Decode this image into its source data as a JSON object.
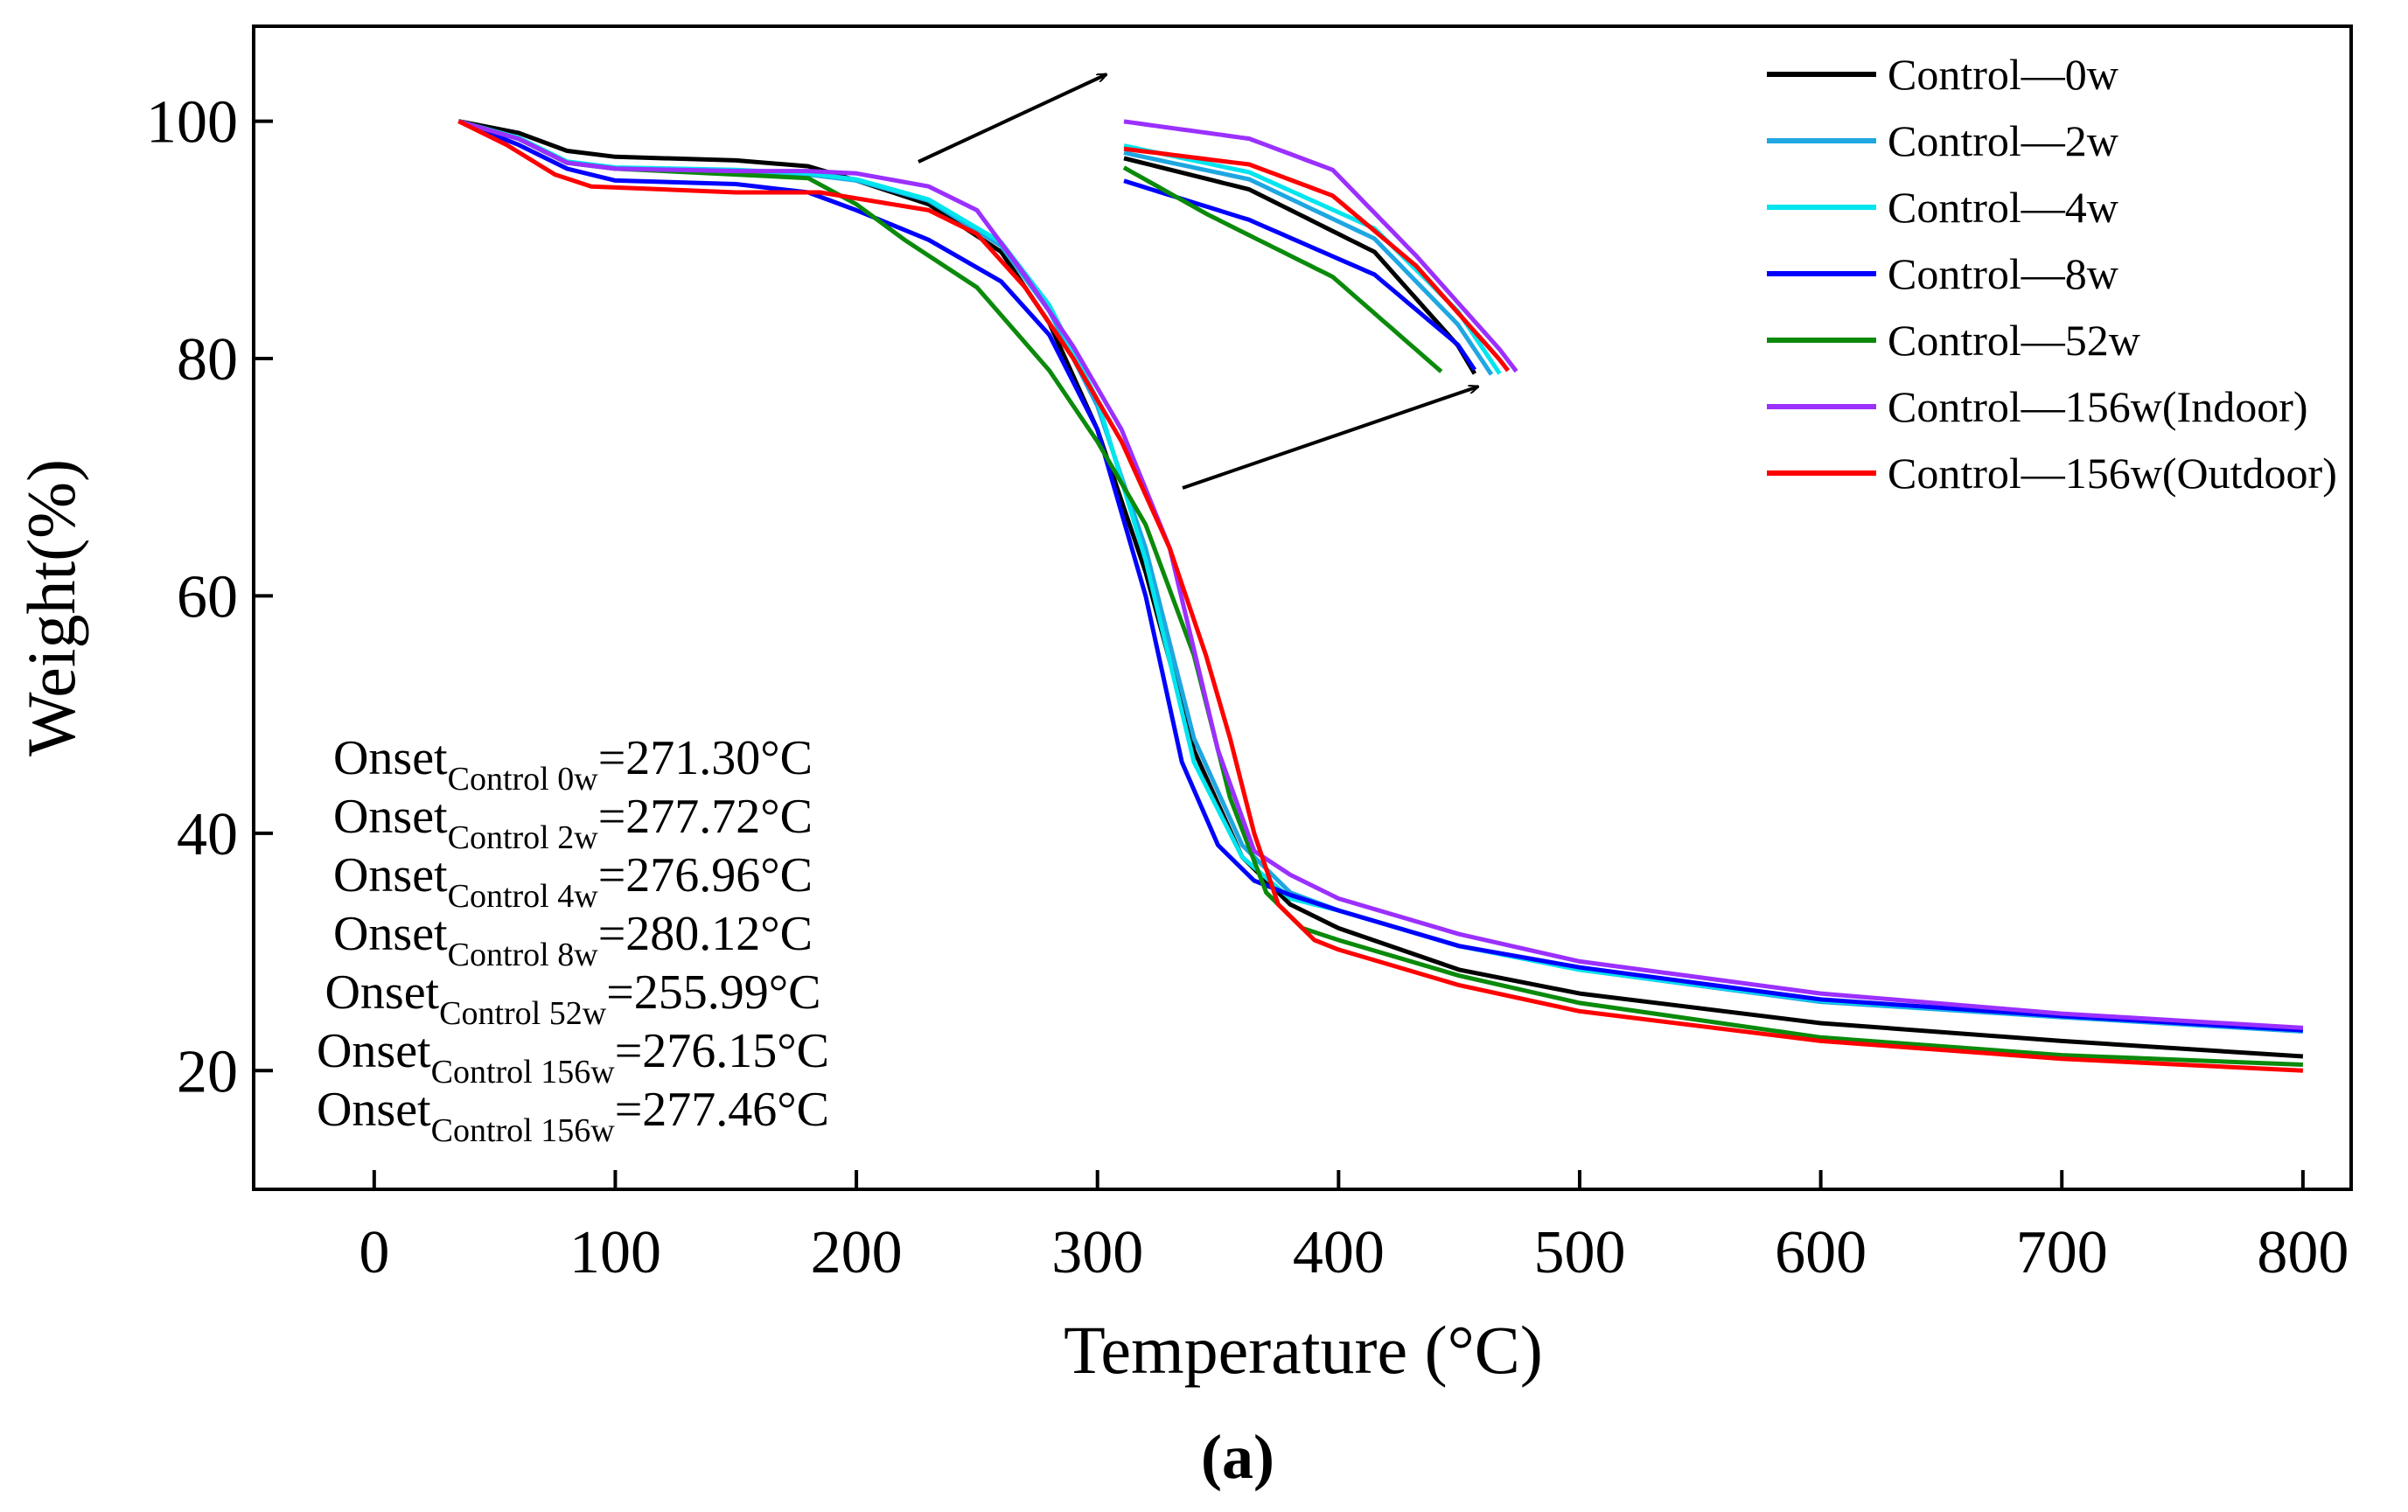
{
  "chart_data": {
    "type": "line",
    "title": "",
    "xlabel": "Temperature (°C)",
    "ylabel": "Weight(%)",
    "xlim": [
      -50,
      820
    ],
    "ylim": [
      10,
      108
    ],
    "xticks": [
      0,
      100,
      200,
      300,
      400,
      500,
      600,
      700,
      800
    ],
    "yticks": [
      20,
      40,
      60,
      80,
      100
    ],
    "caption": "(a)",
    "series": [
      {
        "name": "Control—0w",
        "color": "#000000",
        "x": [
          35,
          60,
          80,
          100,
          150,
          180,
          200,
          230,
          260,
          280,
          300,
          320,
          340,
          360,
          380,
          400,
          450,
          500,
          600,
          700,
          800
        ],
        "y": [
          100,
          99,
          97.5,
          97,
          96.7,
          96.2,
          95,
          93,
          89,
          83,
          74,
          62,
          47,
          38,
          34,
          32,
          28.5,
          26.5,
          24,
          22.5,
          21.2
        ]
      },
      {
        "name": "Control—2w",
        "color": "#1ea7e1",
        "x": [
          35,
          60,
          80,
          100,
          150,
          180,
          200,
          230,
          260,
          280,
          300,
          320,
          340,
          360,
          380,
          400,
          450,
          500,
          600,
          700,
          800
        ],
        "y": [
          100,
          98.5,
          96.5,
          96,
          95.8,
          95.5,
          95,
          93.3,
          89.5,
          84,
          76,
          64,
          48,
          39,
          35,
          33.5,
          30.5,
          28.5,
          25.8,
          24.5,
          23.3
        ]
      },
      {
        "name": "Control—4w",
        "color": "#00e5ee",
        "x": [
          35,
          60,
          80,
          100,
          150,
          180,
          200,
          230,
          260,
          280,
          300,
          320,
          340,
          360,
          380,
          400,
          450,
          500,
          600,
          700,
          800
        ],
        "y": [
          100,
          98.6,
          96.6,
          96.1,
          95.9,
          95.6,
          95.1,
          93.4,
          89.8,
          84.5,
          76.5,
          63,
          46,
          38,
          34.5,
          33.5,
          30.5,
          28.5,
          25.9,
          24.6,
          23.4
        ]
      },
      {
        "name": "Control—8w",
        "color": "#0000ff",
        "x": [
          35,
          60,
          80,
          100,
          150,
          180,
          200,
          230,
          260,
          280,
          300,
          320,
          335,
          350,
          365,
          380,
          400,
          450,
          500,
          600,
          700,
          800
        ],
        "y": [
          100,
          98,
          96,
          95,
          94.7,
          94,
          92.5,
          90,
          86.5,
          82,
          74,
          60,
          46,
          39,
          36,
          34.8,
          33.5,
          30.5,
          28.7,
          26,
          24.6,
          23.4
        ]
      },
      {
        "name": "Control—52w",
        "color": "#0b8a0b",
        "x": [
          35,
          60,
          80,
          100,
          150,
          180,
          200,
          220,
          250,
          280,
          300,
          320,
          340,
          355,
          370,
          385,
          400,
          450,
          500,
          600,
          700,
          800
        ],
        "y": [
          100,
          98.5,
          96.5,
          96,
          95.5,
          95.2,
          93,
          90,
          86,
          79,
          73,
          66,
          55,
          43,
          35,
          32,
          31,
          28,
          25.7,
          22.8,
          21.3,
          20.5
        ]
      },
      {
        "name": "Control—156w(Indoor)",
        "color": "#9b30ff",
        "x": [
          35,
          60,
          80,
          100,
          150,
          180,
          200,
          230,
          250,
          270,
          290,
          310,
          330,
          350,
          365,
          380,
          400,
          450,
          500,
          600,
          700,
          800
        ],
        "y": [
          100,
          98.5,
          96.5,
          96,
          95.8,
          95.8,
          95.6,
          94.5,
          92.5,
          87,
          81,
          74,
          64,
          47,
          38.5,
          36.5,
          34.5,
          31.5,
          29.2,
          26.5,
          24.8,
          23.6
        ]
      },
      {
        "name": "Control—156w(Outdoor)",
        "color": "#ff0000",
        "x": [
          35,
          55,
          75,
          90,
          150,
          185,
          200,
          230,
          250,
          270,
          290,
          310,
          330,
          345,
          355,
          365,
          375,
          390,
          400,
          450,
          500,
          600,
          700,
          800
        ],
        "y": [
          100,
          98,
          95.5,
          94.5,
          94,
          94,
          93.5,
          92.5,
          90.5,
          86,
          80,
          73,
          64,
          55,
          48,
          40,
          34,
          31,
          30.2,
          27.2,
          25,
          22.5,
          21,
          20
        ]
      }
    ],
    "inset_annotation": "Zoomed view of the 80–100% weight-loss onset region (arrows point from the main curves to the inset)",
    "onset_annotations": [
      {
        "prefix": "Onset",
        "subscript": "Control 0w",
        "value": "=271.30°C"
      },
      {
        "prefix": "Onset",
        "subscript": "Control 2w",
        "value": "=277.72°C"
      },
      {
        "prefix": "Onset",
        "subscript": "Control 4w",
        "value": "=276.96°C"
      },
      {
        "prefix": "Onset",
        "subscript": "Control 8w",
        "value": "=280.12°C"
      },
      {
        "prefix": "Onset",
        "subscript": "Control 52w",
        "value": "=255.99°C"
      },
      {
        "prefix": "Onset",
        "subscript": "Control 156w",
        "value": "=276.15°C"
      },
      {
        "prefix": "Onset",
        "subscript": "Control 156w",
        "value": "=277.46°C"
      }
    ]
  }
}
